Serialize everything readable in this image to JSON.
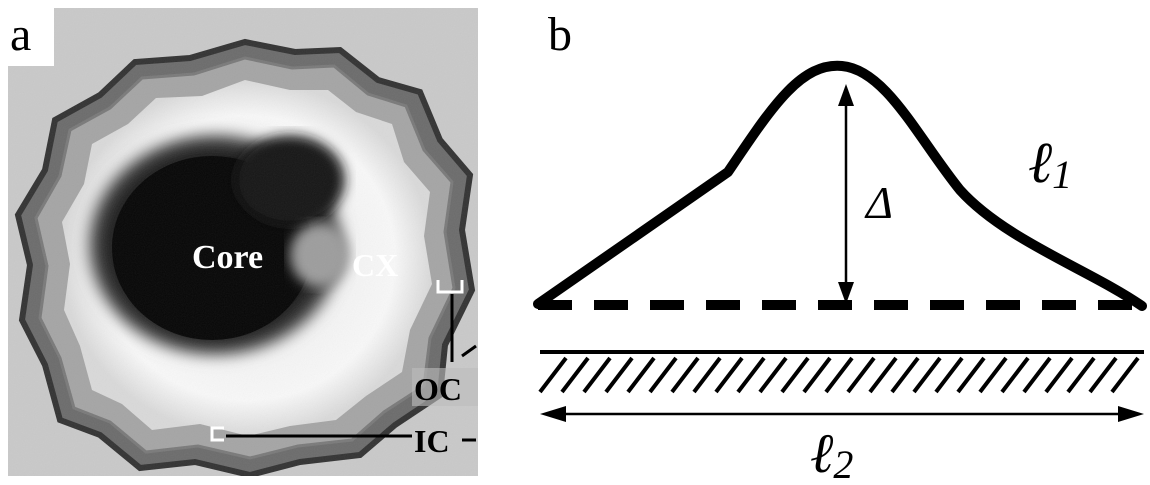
{
  "panel_a": {
    "letter": "a",
    "labels": {
      "core": "Core",
      "cortex": "CX",
      "outer_cuticle": "OC",
      "inner_cuticle": "IC"
    }
  },
  "panel_b": {
    "letter": "b",
    "labels": {
      "delta": "Δ",
      "l1": "ℓ",
      "l1_sub": "1",
      "l2": "ℓ",
      "l2_sub": "2"
    }
  }
}
